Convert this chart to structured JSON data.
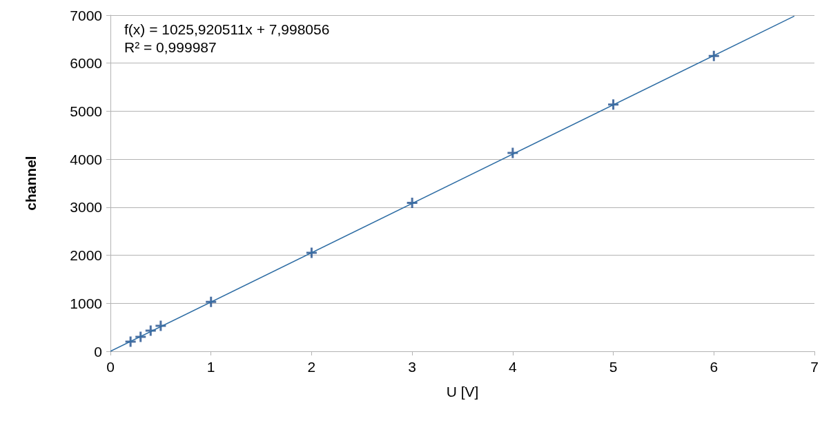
{
  "chart_data": {
    "type": "scatter",
    "xlabel": "U [V]",
    "ylabel": "channel",
    "annotations": [
      "f(x) = 1025,920511x + 7,998056",
      "R² = 0,999987"
    ],
    "series": [
      {
        "type": "scatter",
        "color": "#1f4e8c",
        "marker": "cross",
        "x": [
          0.2,
          0.3,
          0.4,
          0.5,
          1,
          2,
          3,
          4,
          5,
          6
        ],
        "values": [
          200,
          300,
          430,
          530,
          1030,
          2050,
          3090,
          4130,
          5140,
          6150
        ]
      },
      {
        "type": "line",
        "color": "#2e6da4",
        "marker": "none",
        "x": [
          0,
          6.8
        ],
        "values": [
          0,
          6980
        ]
      }
    ],
    "xlim": [
      0,
      7
    ],
    "xticks": [
      0,
      1,
      2,
      3,
      4,
      5,
      6,
      7
    ],
    "ylim": [
      0,
      7000
    ],
    "yticks": [
      0,
      1000,
      2000,
      3000,
      4000,
      5000,
      6000,
      7000
    ],
    "grid": "y"
  }
}
